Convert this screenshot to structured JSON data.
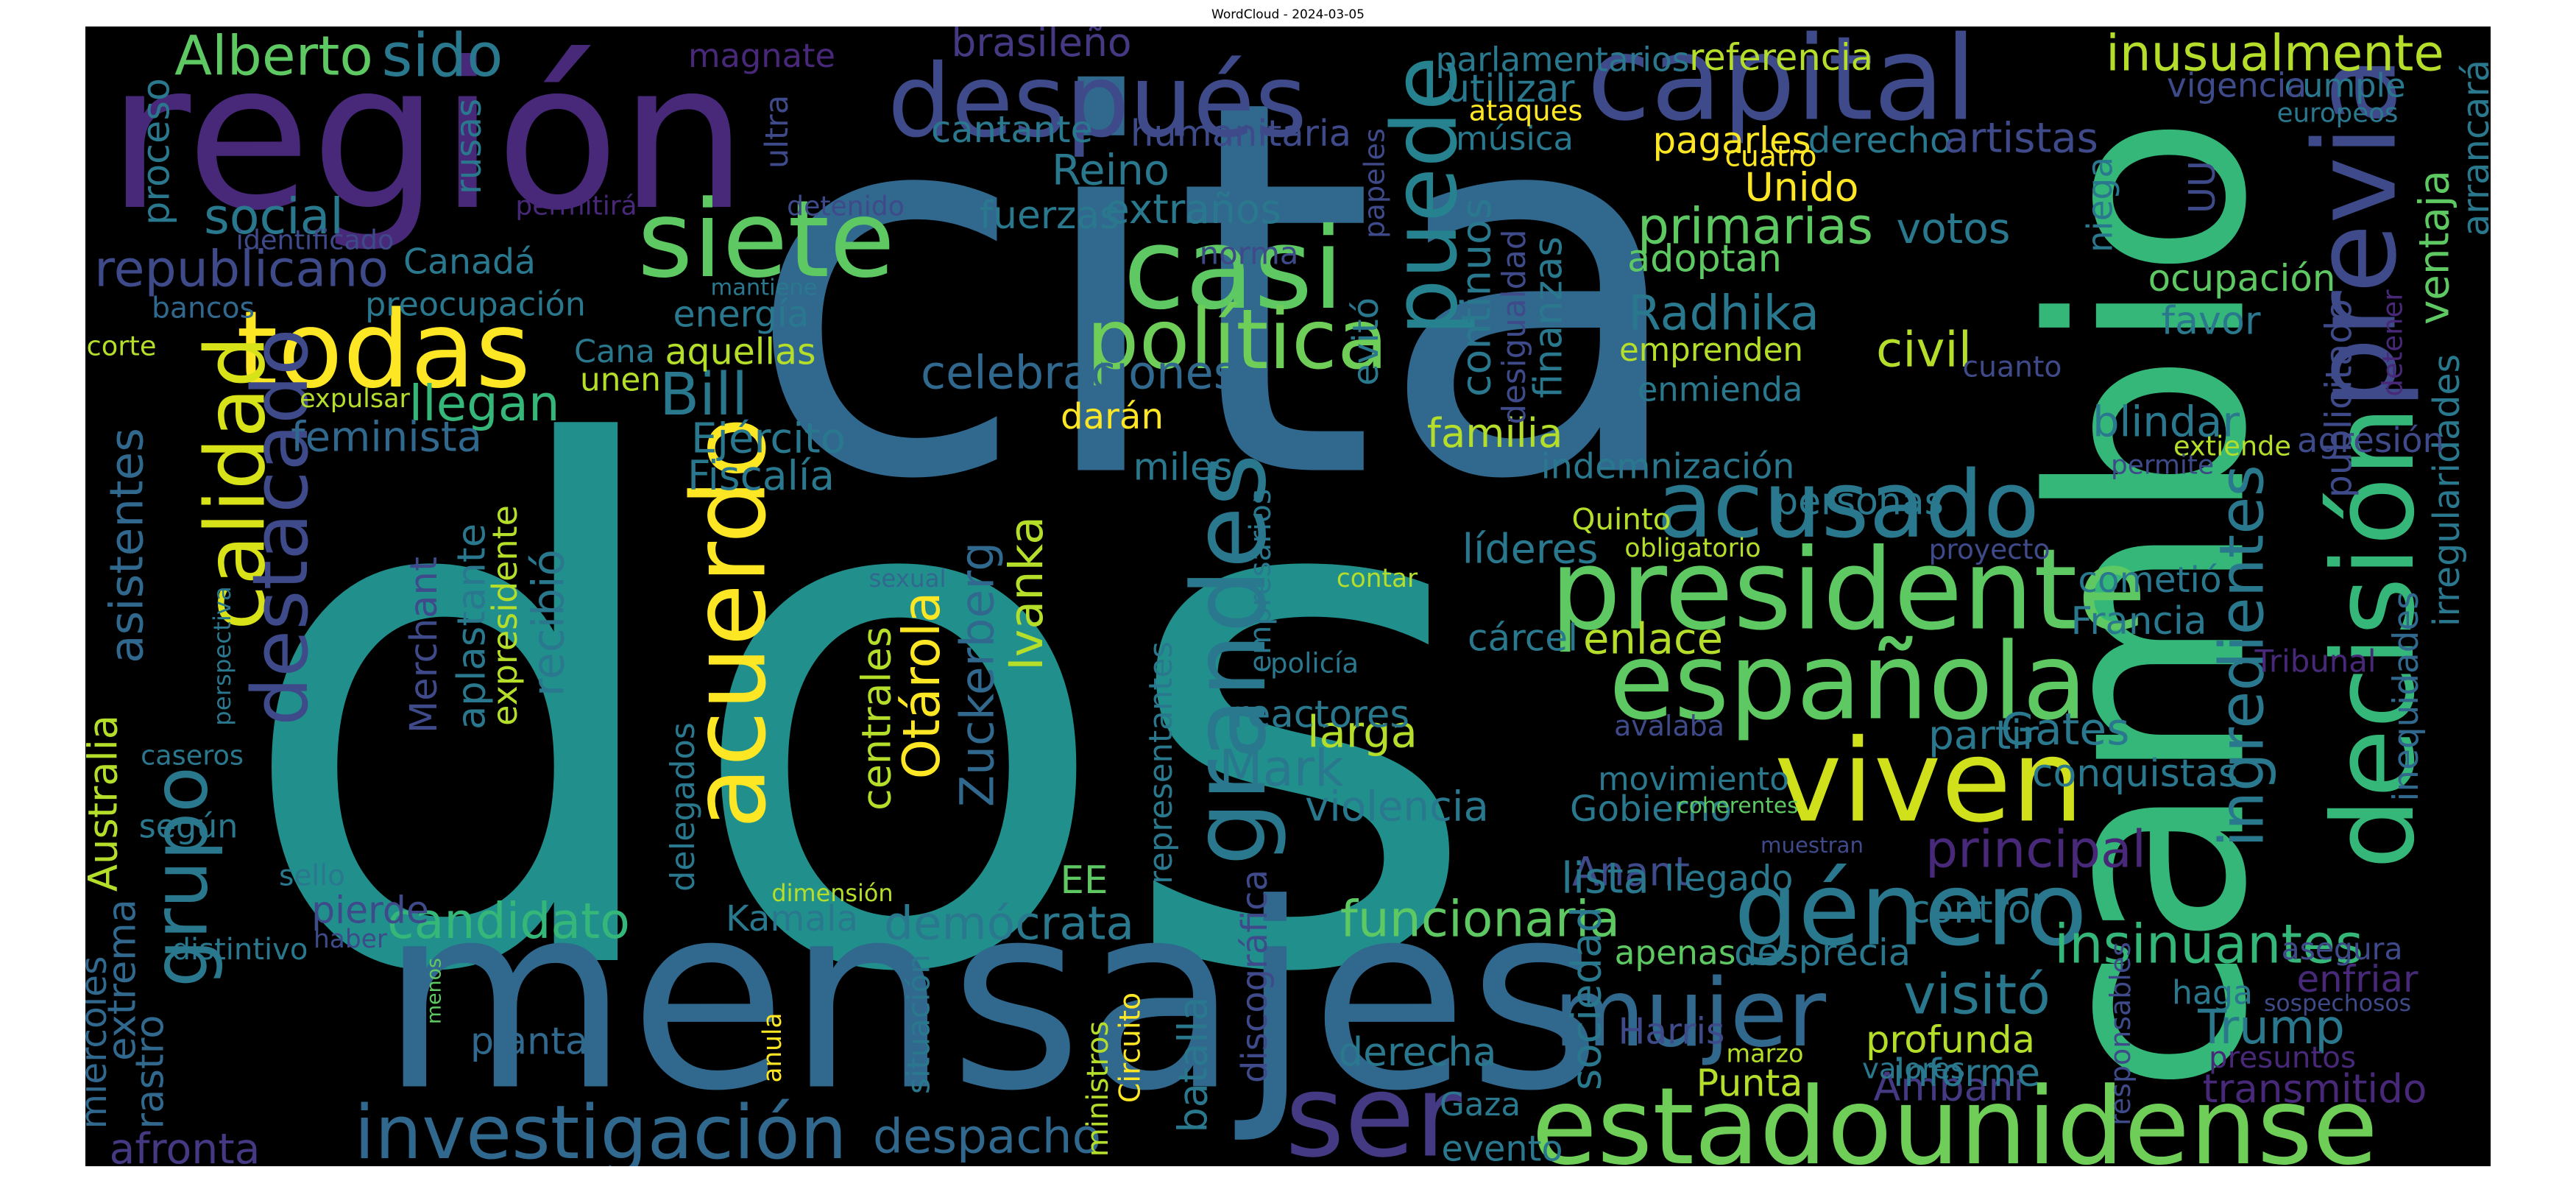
{
  "title": "WordCloud - 2024-03-05",
  "words": [
    {
      "text": "dos",
      "color": "#21908d"
    },
    {
      "text": "cita",
      "color": "#31688e"
    },
    {
      "text": "cambio",
      "color": "#35b779"
    },
    {
      "text": "mensajes",
      "color": "#31688e"
    },
    {
      "text": "región",
      "color": "#482878"
    },
    {
      "text": "después",
      "color": "#3e4a89"
    },
    {
      "text": "capital",
      "color": "#3e4a89"
    },
    {
      "text": "presidente",
      "color": "#5ec962"
    },
    {
      "text": "española",
      "color": "#5ec962"
    },
    {
      "text": "estadounidense",
      "color": "#6ece58"
    },
    {
      "text": "viven",
      "color": "#d0e11c"
    },
    {
      "text": "acusado",
      "color": "#2a788e"
    },
    {
      "text": "decisión",
      "color": "#35b779"
    },
    {
      "text": "previa",
      "color": "#3e4a89"
    },
    {
      "text": "todas",
      "color": "#fde725"
    },
    {
      "text": "casi",
      "color": "#5ec962"
    },
    {
      "text": "siete",
      "color": "#5ec962"
    },
    {
      "text": "política",
      "color": "#6ece58"
    },
    {
      "text": "puede",
      "color": "#26828e"
    },
    {
      "text": "grandes",
      "color": "#2a788e"
    },
    {
      "text": "acuerdo",
      "color": "#fde725"
    },
    {
      "text": "calidad",
      "color": "#d8e219"
    },
    {
      "text": "destacado",
      "color": "#3e4a89"
    },
    {
      "text": "grupo",
      "color": "#2a788e"
    },
    {
      "text": "género",
      "color": "#2a788e"
    },
    {
      "text": "mujer",
      "color": "#31688e"
    },
    {
      "text": "ser",
      "color": "#443983"
    },
    {
      "text": "investigación",
      "color": "#31688e"
    },
    {
      "text": "despacho",
      "color": "#31688e"
    },
    {
      "text": "candidato",
      "color": "#35b779"
    },
    {
      "text": "demócrata",
      "color": "#2a788e"
    },
    {
      "text": "funcionaria",
      "color": "#5ec962"
    },
    {
      "text": "insinuantes",
      "color": "#35b779"
    },
    {
      "text": "visitó",
      "color": "#2a788e"
    },
    {
      "text": "Trump",
      "color": "#2a788e"
    },
    {
      "text": "ingredientes",
      "color": "#2a788e"
    },
    {
      "text": "inusualmente",
      "color": "#b5de2b"
    },
    {
      "text": "Alberto",
      "color": "#5ec962"
    },
    {
      "text": "sido",
      "color": "#2a788e"
    },
    {
      "text": "social",
      "color": "#2a788e"
    },
    {
      "text": "republicano",
      "color": "#3e4a89"
    },
    {
      "text": "Canadá",
      "color": "#2a788e"
    },
    {
      "text": "bancos",
      "color": "#31688e"
    },
    {
      "text": "preocupación",
      "color": "#2a788e"
    },
    {
      "text": "llegan",
      "color": "#35b779"
    },
    {
      "text": "feminista",
      "color": "#31688e"
    },
    {
      "text": "asistentes",
      "color": "#31688e"
    },
    {
      "text": "Australia",
      "color": "#b5de2b"
    },
    {
      "text": "según",
      "color": "#2a788e"
    },
    {
      "text": "extrema",
      "color": "#31688e"
    },
    {
      "text": "rastro",
      "color": "#31688e"
    },
    {
      "text": "afronta",
      "color": "#443983"
    },
    {
      "text": "miércoles",
      "color": "#31688e"
    },
    {
      "text": "planta",
      "color": "#31688e"
    },
    {
      "text": "pierde",
      "color": "#3e4a89"
    },
    {
      "text": "Merchant",
      "color": "#3e4a89"
    },
    {
      "text": "aplastante",
      "color": "#2a788e"
    },
    {
      "text": "expresidente",
      "color": "#b5de2b"
    },
    {
      "text": "recibió",
      "color": "#2a788e"
    },
    {
      "text": "Bill",
      "color": "#2a788e"
    },
    {
      "text": "Ejército",
      "color": "#2a788e"
    },
    {
      "text": "Fiscalía",
      "color": "#2a788e"
    },
    {
      "text": "celebraciones",
      "color": "#31688e"
    },
    {
      "text": "darán",
      "color": "#fde725"
    },
    {
      "text": "Otárola",
      "color": "#fde725"
    },
    {
      "text": "Zuckerberg",
      "color": "#31688e"
    },
    {
      "text": "Ivanka",
      "color": "#b5de2b"
    },
    {
      "text": "centrales",
      "color": "#b5de2b"
    },
    {
      "text": "Mark",
      "color": "#2a788e"
    },
    {
      "text": "larga",
      "color": "#b5de2b"
    },
    {
      "text": "violencia",
      "color": "#2a788e"
    },
    {
      "text": "reactores",
      "color": "#2a788e"
    },
    {
      "text": "Kamala",
      "color": "#2a788e"
    },
    {
      "text": "EE",
      "color": "#5ec962"
    },
    {
      "text": "Gaza",
      "color": "#2a788e"
    },
    {
      "text": "evento",
      "color": "#2a788e"
    },
    {
      "text": "derecha",
      "color": "#2a788e"
    },
    {
      "text": "Punta",
      "color": "#b5de2b"
    },
    {
      "text": "Ambani",
      "color": "#443983"
    },
    {
      "text": "Harris",
      "color": "#3e4a89"
    },
    {
      "text": "Gates",
      "color": "#2a788e"
    },
    {
      "text": "principal",
      "color": "#482878"
    },
    {
      "text": "Anant",
      "color": "#3e4a89"
    },
    {
      "text": "movimiento",
      "color": "#2a788e"
    },
    {
      "text": "Gobierno",
      "color": "#2a788e"
    },
    {
      "text": "lista",
      "color": "#2a788e"
    },
    {
      "text": "llegado",
      "color": "#2a788e"
    },
    {
      "text": "apenas",
      "color": "#5ec962"
    },
    {
      "text": "desprecia",
      "color": "#2a788e"
    },
    {
      "text": "profunda",
      "color": "#b5de2b"
    },
    {
      "text": "informe",
      "color": "#2a788e"
    },
    {
      "text": "control",
      "color": "#2a788e"
    },
    {
      "text": "conquistas",
      "color": "#2a788e"
    },
    {
      "text": "partir",
      "color": "#2a788e"
    },
    {
      "text": "Francia",
      "color": "#2a788e"
    },
    {
      "text": "cometió",
      "color": "#2a788e"
    },
    {
      "text": "personas",
      "color": "#2a788e"
    },
    {
      "text": "indemnización",
      "color": "#2a788e"
    },
    {
      "text": "blindar",
      "color": "#2a788e"
    },
    {
      "text": "familia",
      "color": "#b5de2b"
    },
    {
      "text": "enlace",
      "color": "#b5de2b"
    },
    {
      "text": "cárcel",
      "color": "#2a788e"
    },
    {
      "text": "líderes",
      "color": "#2a788e"
    },
    {
      "text": "Radhika",
      "color": "#2a788e"
    },
    {
      "text": "emprenden",
      "color": "#b5de2b"
    },
    {
      "text": "enmienda",
      "color": "#2a788e"
    },
    {
      "text": "civil",
      "color": "#b5de2b"
    },
    {
      "text": "adoptan",
      "color": "#5ec962"
    },
    {
      "text": "primarias",
      "color": "#5ec962"
    },
    {
      "text": "votos",
      "color": "#2a788e"
    },
    {
      "text": "Unido",
      "color": "#fde725"
    },
    {
      "text": "pagarles",
      "color": "#fde725"
    },
    {
      "text": "derecho",
      "color": "#2a788e"
    },
    {
      "text": "artistas",
      "color": "#3e4a89"
    },
    {
      "text": "música",
      "color": "#2a788e"
    },
    {
      "text": "utilizar",
      "color": "#2a788e"
    },
    {
      "text": "parlamentarios",
      "color": "#2a788e"
    },
    {
      "text": "referencia",
      "color": "#b5de2b"
    },
    {
      "text": "continuos",
      "color": "#2a788e"
    },
    {
      "text": "finanzas",
      "color": "#2a788e"
    },
    {
      "text": "desigualdad",
      "color": "#3e4a89"
    },
    {
      "text": "ocupación",
      "color": "#5ec962"
    },
    {
      "text": "favor",
      "color": "#2a788e"
    },
    {
      "text": "ventaja",
      "color": "#5ec962"
    },
    {
      "text": "publicitado",
      "color": "#3e4a89"
    },
    {
      "text": "irregularidades",
      "color": "#2a788e"
    },
    {
      "text": "inequidades",
      "color": "#31688e"
    },
    {
      "text": "arrancará",
      "color": "#2a788e"
    },
    {
      "text": "cumple",
      "color": "#2a788e"
    },
    {
      "text": "vigencia",
      "color": "#3e4a89"
    },
    {
      "text": "europeos",
      "color": "#2a788e"
    },
    {
      "text": "niega",
      "color": "#2a788e"
    },
    {
      "text": "UU",
      "color": "#3e4a89"
    },
    {
      "text": "agresión",
      "color": "#3e4a89"
    },
    {
      "text": "extiende",
      "color": "#b5de2b"
    },
    {
      "text": "permite",
      "color": "#3e4a89"
    },
    {
      "text": "proyecto",
      "color": "#3e4a89"
    },
    {
      "text": "Tribunal",
      "color": "#482878"
    },
    {
      "text": "asegura",
      "color": "#3e4a89"
    },
    {
      "text": "enfriar",
      "color": "#482878"
    },
    {
      "text": "sospechosos",
      "color": "#3e4a89"
    },
    {
      "text": "presuntos",
      "color": "#482878"
    },
    {
      "text": "transmitido",
      "color": "#482878"
    },
    {
      "text": "haga",
      "color": "#2a788e"
    },
    {
      "text": "responsables",
      "color": "#3e4a89"
    },
    {
      "text": "valores",
      "color": "#2a788e"
    },
    {
      "text": "marzo",
      "color": "#b5de2b"
    },
    {
      "text": "muestran",
      "color": "#3e4a89"
    },
    {
      "text": "coherentes",
      "color": "#5ec962"
    },
    {
      "text": "avalaba",
      "color": "#3e4a89"
    },
    {
      "text": "sociedad",
      "color": "#2a788e"
    },
    {
      "text": "obligatorio",
      "color": "#b5de2b"
    },
    {
      "text": "Quinto",
      "color": "#b5de2b"
    },
    {
      "text": "contar",
      "color": "#b5de2b"
    },
    {
      "text": "cuanto",
      "color": "#3e4a89"
    },
    {
      "text": "detener",
      "color": "#482878"
    },
    {
      "text": "cuatro",
      "color": "#fde725"
    },
    {
      "text": "ataques",
      "color": "#fde725"
    },
    {
      "text": "papeles",
      "color": "#3e4a89"
    },
    {
      "text": "evitó",
      "color": "#2a788e"
    },
    {
      "text": "norma",
      "color": "#3e4a89"
    },
    {
      "text": "fuerzas",
      "color": "#2a788e"
    },
    {
      "text": "extraños",
      "color": "#2a788e"
    },
    {
      "text": "Reino",
      "color": "#2a788e"
    },
    {
      "text": "humanitaria",
      "color": "#3e4a89"
    },
    {
      "text": "cantante",
      "color": "#2a788e"
    },
    {
      "text": "brasileño",
      "color": "#443983"
    },
    {
      "text": "magnate",
      "color": "#482878"
    },
    {
      "text": "ultra",
      "color": "#3e4a89"
    },
    {
      "text": "detenido",
      "color": "#3e4a89"
    },
    {
      "text": "identificado",
      "color": "#3e4a89"
    },
    {
      "text": "permitirá",
      "color": "#482878"
    },
    {
      "text": "mantiene",
      "color": "#2a788e"
    },
    {
      "text": "rusas",
      "color": "#2a788e"
    },
    {
      "text": "proceso",
      "color": "#2a788e"
    },
    {
      "text": "corte",
      "color": "#b5de2b"
    },
    {
      "text": "expulsar",
      "color": "#b5de2b"
    },
    {
      "text": "Cana",
      "color": "#2a788e"
    },
    {
      "text": "unen",
      "color": "#b5de2b"
    },
    {
      "text": "aquellas",
      "color": "#b5de2b"
    },
    {
      "text": "energía",
      "color": "#2a788e"
    },
    {
      "text": "miles",
      "color": "#2a788e"
    },
    {
      "text": "empresarios",
      "color": "#2a788e"
    },
    {
      "text": "policía",
      "color": "#2a788e"
    },
    {
      "text": "sexual",
      "color": "#31688e"
    },
    {
      "text": "perspectiva",
      "color": "#2a788e"
    },
    {
      "text": "caseros",
      "color": "#2a788e"
    },
    {
      "text": "sello",
      "color": "#2a788e"
    },
    {
      "text": "distintivo",
      "color": "#2a788e"
    },
    {
      "text": "haber",
      "color": "#3e4a89"
    },
    {
      "text": "menos",
      "color": "#5ec962"
    },
    {
      "text": "dimensión",
      "color": "#b5de2b"
    },
    {
      "text": "anula",
      "color": "#fde725"
    },
    {
      "text": "situación",
      "color": "#2a788e"
    },
    {
      "text": "ministros",
      "color": "#b5de2b"
    },
    {
      "text": "Circuito",
      "color": "#fde725"
    },
    {
      "text": "batalla",
      "color": "#2a788e"
    },
    {
      "text": "discográfica",
      "color": "#3e4a89"
    },
    {
      "text": "representantes",
      "color": "#2a788e"
    },
    {
      "text": "delegados",
      "color": "#2a788e"
    }
  ]
}
